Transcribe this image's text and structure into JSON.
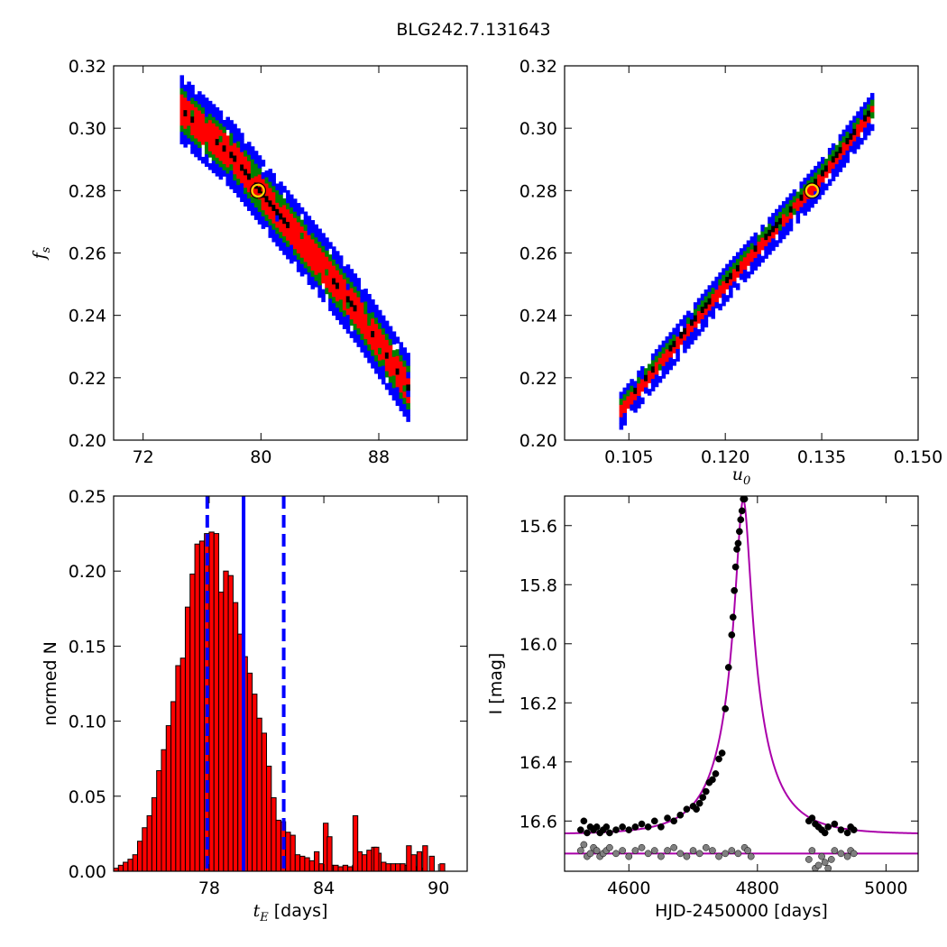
{
  "figure": {
    "title": "BLG242.7.131643"
  },
  "chart_data": [
    {
      "panel": "top-left",
      "type": "heatmap",
      "xlabel": "",
      "ylabel": "f_s",
      "ylabel_symbol": "f",
      "ylabel_sub": "s",
      "xlim": [
        70,
        94
      ],
      "ylim": [
        0.2,
        0.32
      ],
      "xticks": [
        72,
        80,
        88
      ],
      "yticks": [
        0.2,
        0.22,
        0.24,
        0.26,
        0.28,
        0.3,
        0.32
      ],
      "ytick_labels": [
        "0.20",
        "0.22",
        "0.24",
        "0.26",
        "0.28",
        "0.30",
        "0.32"
      ],
      "confidence_colors": [
        "#0000ff",
        "#008000",
        "#ff0000",
        "#000000"
      ],
      "ridge": [
        [
          74.5,
          0.305
        ],
        [
          78.0,
          0.29
        ],
        [
          80.5,
          0.275
        ],
        [
          84.0,
          0.255
        ],
        [
          86.5,
          0.24
        ],
        [
          90.0,
          0.215
        ]
      ],
      "best_fit": {
        "x": 79.8,
        "y": 0.28,
        "marker_color": "#ffd700"
      }
    },
    {
      "panel": "top-right",
      "type": "heatmap",
      "xlabel": "u_0",
      "xlabel_symbol": "u",
      "xlabel_sub": "0",
      "ylabel": "",
      "xlim": [
        0.095,
        0.15
      ],
      "ylim": [
        0.2,
        0.32
      ],
      "xticks": [
        0.105,
        0.12,
        0.135,
        0.15
      ],
      "xtick_labels": [
        "0.105",
        "0.120",
        "0.135",
        "0.150"
      ],
      "yticks": [
        0.2,
        0.22,
        0.24,
        0.26,
        0.28,
        0.3,
        0.32
      ],
      "ytick_labels": [
        "0.20",
        "0.22",
        "0.24",
        "0.26",
        "0.28",
        "0.30",
        "0.32"
      ],
      "confidence_colors": [
        "#0000ff",
        "#008000",
        "#ff0000",
        "#000000"
      ],
      "ridge": [
        [
          0.1035,
          0.209
        ],
        [
          0.12,
          0.25
        ],
        [
          0.127,
          0.266
        ],
        [
          0.134,
          0.282
        ],
        [
          0.143,
          0.306
        ]
      ],
      "best_fit": {
        "x": 0.1335,
        "y": 0.28,
        "marker_color": "#ffd700"
      }
    },
    {
      "panel": "bottom-left",
      "type": "bar",
      "xlabel": "t_E [days]",
      "xlabel_symbol": "t",
      "xlabel_sub": "E",
      "xlabel_rest": " [days]",
      "ylabel": "normed N",
      "xlim": [
        73,
        91.5
      ],
      "ylim": [
        0,
        0.25
      ],
      "xticks": [
        78,
        84,
        90
      ],
      "yticks": [
        0.0,
        0.05,
        0.1,
        0.15,
        0.2,
        0.25
      ],
      "ytick_labels": [
        "0.00",
        "0.05",
        "0.10",
        "0.15",
        "0.20",
        "0.25"
      ],
      "bin_start": 73.0,
      "bin_width": 0.25,
      "values": [
        0.002,
        0.004,
        0.006,
        0.008,
        0.011,
        0.02,
        0.029,
        0.037,
        0.049,
        0.067,
        0.081,
        0.097,
        0.113,
        0.137,
        0.142,
        0.176,
        0.198,
        0.218,
        0.22,
        0.225,
        0.226,
        0.225,
        0.186,
        0.2,
        0.197,
        0.179,
        0.158,
        0.143,
        0.132,
        0.118,
        0.102,
        0.092,
        0.07,
        0.049,
        0.034,
        0.033,
        0.026,
        0.024,
        0.011,
        0.01,
        0.009,
        0.007,
        0.013,
        0.005,
        0.005,
        0.004,
        0.004,
        0.003,
        0.004,
        0.003,
        0.004,
        0.013,
        0.011,
        0.014,
        0.016,
        0.012,
        0.006,
        0.005,
        0.005,
        0.005,
        0.005,
        0.004,
        0.004,
        0.003,
        0.002
      ],
      "values_extra": [
        [
          85.65,
          0.037
        ],
        [
          86.75,
          0.016
        ],
        [
          88.45,
          0.017
        ],
        [
          88.7,
          0.011
        ],
        [
          89.0,
          0.013
        ],
        [
          89.3,
          0.017
        ],
        [
          89.65,
          0.01
        ],
        [
          90.2,
          0.005
        ],
        [
          84.1,
          0.032
        ],
        [
          84.3,
          0.023
        ]
      ],
      "bar_color": "#ff0000",
      "vlines": [
        {
          "x": 79.8,
          "style": "solid",
          "color": "#0000ff"
        },
        {
          "x": 77.9,
          "style": "dashed",
          "color": "#0000ff"
        },
        {
          "x": 81.9,
          "style": "dashed",
          "color": "#0000ff"
        }
      ]
    },
    {
      "panel": "bottom-right",
      "type": "scatter",
      "xlabel": "HJD-2450000 [days]",
      "ylabel": "I [mag]",
      "xlim": [
        4500,
        5050
      ],
      "ylim": [
        16.77,
        15.5
      ],
      "y_inverted": true,
      "xticks": [
        4600,
        4800,
        5000
      ],
      "yticks": [
        15.6,
        15.8,
        16.0,
        16.2,
        16.4,
        16.6
      ],
      "ytick_labels": [
        "15.6",
        "15.8",
        "16.0",
        "16.2",
        "16.4",
        "16.6"
      ],
      "model": {
        "t0": 4778,
        "u0": 0.133,
        "tE": 79.8,
        "baseline": 16.645,
        "fs": 0.28,
        "color": "#aa00aa"
      },
      "residual_baseline": 16.71,
      "series": [
        {
          "name": "",
          "color": "#000000",
          "x": [
            4525,
            4530,
            4535,
            4540,
            4545,
            4550,
            4555,
            4560,
            4565,
            4570,
            4580,
            4590,
            4600,
            4610,
            4620,
            4630,
            4640,
            4650,
            4660,
            4670,
            4680,
            4690,
            4700,
            4705,
            4710,
            4715,
            4720,
            4725,
            4730,
            4735,
            4740,
            4745,
            4750,
            4755,
            4760,
            4762,
            4764,
            4766,
            4768,
            4770,
            4772,
            4774,
            4776,
            4778,
            4780,
            4880,
            4885,
            4890,
            4895,
            4900,
            4905,
            4910,
            4920,
            4930,
            4940,
            4945,
            4950
          ],
          "y": [
            16.63,
            16.6,
            16.64,
            16.62,
            16.63,
            16.62,
            16.64,
            16.63,
            16.62,
            16.64,
            16.63,
            16.62,
            16.63,
            16.62,
            16.61,
            16.62,
            16.6,
            16.62,
            16.59,
            16.6,
            16.58,
            16.56,
            16.55,
            16.56,
            16.54,
            16.52,
            16.5,
            16.47,
            16.46,
            16.44,
            16.39,
            16.37,
            16.22,
            16.08,
            15.97,
            15.91,
            15.82,
            15.74,
            15.68,
            15.66,
            15.62,
            15.58,
            15.55,
            15.51,
            15.51,
            16.6,
            16.59,
            16.61,
            16.62,
            16.63,
            16.64,
            16.62,
            16.61,
            16.63,
            16.64,
            16.62,
            16.63
          ]
        },
        {
          "name": "",
          "color": "#808080",
          "x": [
            4525,
            4530,
            4535,
            4540,
            4545,
            4550,
            4555,
            4560,
            4565,
            4570,
            4580,
            4590,
            4600,
            4610,
            4620,
            4630,
            4640,
            4650,
            4660,
            4670,
            4680,
            4690,
            4700,
            4710,
            4720,
            4730,
            4740,
            4750,
            4760,
            4770,
            4780,
            4785,
            4790,
            4880,
            4885,
            4890,
            4895,
            4900,
            4905,
            4910,
            4915,
            4920,
            4930,
            4940,
            4945,
            4950
          ],
          "y": [
            16.7,
            16.68,
            16.72,
            16.71,
            16.69,
            16.7,
            16.72,
            16.71,
            16.7,
            16.69,
            16.71,
            16.7,
            16.72,
            16.7,
            16.69,
            16.71,
            16.7,
            16.72,
            16.7,
            16.69,
            16.71,
            16.72,
            16.7,
            16.71,
            16.69,
            16.7,
            16.72,
            16.71,
            16.7,
            16.71,
            16.69,
            16.7,
            16.72,
            16.73,
            16.7,
            16.76,
            16.75,
            16.72,
            16.74,
            16.76,
            16.73,
            16.7,
            16.71,
            16.72,
            16.7,
            16.71
          ]
        }
      ]
    }
  ]
}
